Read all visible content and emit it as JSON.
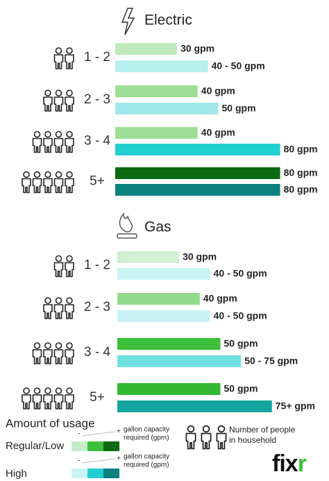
{
  "panels": [
    {
      "title": "Electric",
      "groups": [
        {
          "label": "1 - 2",
          "bars": [
            {
              "value": 30,
              "value_label": "30 gpm",
              "color": "#bfe9bc"
            },
            {
              "value": 45,
              "value_label": "40 - 50 gpm",
              "color": "#b7eef0"
            }
          ]
        },
        {
          "label": "2 - 3",
          "bars": [
            {
              "value": 40,
              "value_label": "40 gpm",
              "color": "#9edf97"
            },
            {
              "value": 50,
              "value_label": "50 gpm",
              "color": "#a2e8ea"
            }
          ]
        },
        {
          "label": "3 - 4",
          "bars": [
            {
              "value": 40,
              "value_label": "40 gpm",
              "color": "#9edf97"
            },
            {
              "value": 80,
              "value_label": "80 gpm",
              "color": "#22cfd0"
            }
          ]
        },
        {
          "label": "5+",
          "bars": [
            {
              "value": 80,
              "value_label": "80 gpm",
              "color": "#0c6a12"
            },
            {
              "value": 80,
              "value_label": "80 gpm",
              "color": "#0d8080"
            }
          ]
        }
      ]
    },
    {
      "title": "Gas",
      "groups": [
        {
          "label": "1 - 2",
          "bars": [
            {
              "value": 30,
              "value_label": "30 gpm",
              "color": "#d0f0cf"
            },
            {
              "value": 45,
              "value_label": "40 - 50 gpm",
              "color": "#c9f3f5"
            }
          ]
        },
        {
          "label": "2 - 3",
          "bars": [
            {
              "value": 40,
              "value_label": "40 gpm",
              "color": "#92da8c"
            },
            {
              "value": 45,
              "value_label": "40 - 50 gpm",
              "color": "#c9f3f5"
            }
          ]
        },
        {
          "label": "3 - 4",
          "bars": [
            {
              "value": 50,
              "value_label": "50 gpm",
              "color": "#3dbf3b"
            },
            {
              "value": 60,
              "value_label": "50 - 75 gpm",
              "color": "#6fe0e2"
            }
          ]
        },
        {
          "label": "5+",
          "bars": [
            {
              "value": 50,
              "value_label": "50 gpm",
              "color": "#33b833"
            },
            {
              "value": 75,
              "value_label": "75+ gpm",
              "color": "#15a59e"
            }
          ]
        }
      ]
    }
  ],
  "legend": {
    "title": "Amount of usage",
    "rows": [
      {
        "label": "Regular/Low",
        "colors": [
          "#c8ecc6",
          "#3dbf3b",
          "#0c6a12"
        ]
      },
      {
        "label": "High",
        "colors": [
          "#c9f3f5",
          "#22cfd0",
          "#0d8080"
        ]
      }
    ],
    "minus": "-",
    "plus": "+",
    "capacity": [
      "gallon capacity",
      "required (gpm)"
    ],
    "people": [
      "Number of people",
      "in household"
    ]
  },
  "logo": {
    "main": "fix",
    "accent": "r"
  }
}
